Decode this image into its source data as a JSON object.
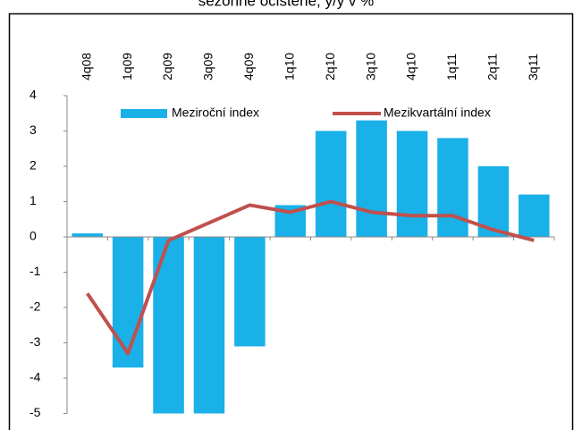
{
  "chart_data": {
    "type": "bar_line",
    "title": "sezónně očištěné, y/y v %",
    "categories": [
      "4q08",
      "1q09",
      "2q09",
      "3q09",
      "4q09",
      "1q10",
      "2q10",
      "3q10",
      "4q10",
      "1q11",
      "2q11",
      "3q11"
    ],
    "series": [
      {
        "name": "Meziroční index",
        "type": "bar",
        "color": "#1ab0e8",
        "values": [
          0.1,
          -3.7,
          -5.0,
          -5.0,
          -3.1,
          0.9,
          3.0,
          3.3,
          3.0,
          2.8,
          2.0,
          1.2
        ]
      },
      {
        "name": "Mezikvartální index",
        "type": "line",
        "color": "#c0504d",
        "values": [
          -1.6,
          -3.3,
          -0.1,
          0.4,
          0.9,
          0.7,
          1.0,
          0.7,
          0.6,
          0.6,
          0.2,
          -0.1
        ]
      }
    ],
    "ylim": [
      -5,
      4
    ],
    "yticks": [
      -5,
      -4,
      -3,
      -2,
      -1,
      0,
      1,
      2,
      3,
      4
    ],
    "grid": false
  }
}
